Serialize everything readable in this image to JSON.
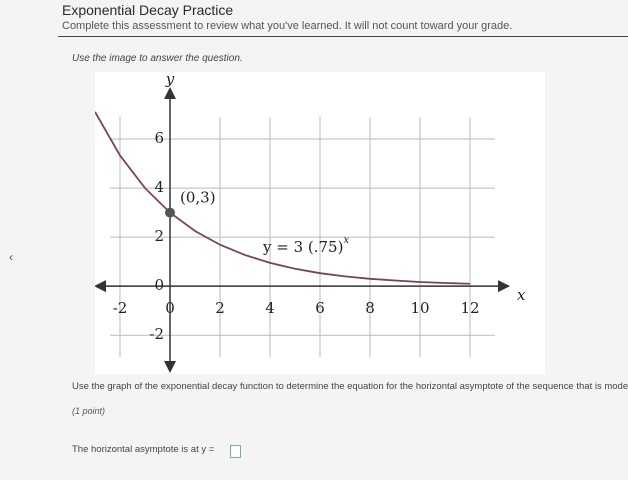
{
  "header": {
    "title": "Exponential Decay Practice",
    "subtitle": "Complete this assessment to review what you've learned. It will not count toward your grade."
  },
  "nav": {
    "previous": "‹"
  },
  "instruction": "Use the image to answer the question.",
  "chart_data": {
    "type": "line",
    "xlabel": "x",
    "ylabel": "y",
    "x": [
      -3,
      -2,
      -1,
      0,
      1,
      2,
      3,
      4,
      5,
      6,
      7,
      8,
      9,
      10,
      11,
      12
    ],
    "values": [
      7.11,
      5.33,
      4,
      3,
      2.25,
      1.69,
      1.27,
      0.95,
      0.71,
      0.53,
      0.4,
      0.3,
      0.23,
      0.17,
      0.13,
      0.1
    ],
    "color": "#7a4450",
    "xlim": [
      -3,
      13
    ],
    "ylim": [
      -3.5,
      8
    ],
    "xticks": [
      -2,
      0,
      2,
      4,
      6,
      8,
      10,
      12
    ],
    "yticks": [
      6,
      4,
      2,
      0,
      -2
    ],
    "grid": true,
    "point": {
      "x": 0,
      "y": 3,
      "label": "(0,3)"
    },
    "equation": {
      "text": "y = 3 (.75)",
      "exponent": "x"
    }
  },
  "question": "Use the graph of the exponential decay function to determine the equation for the horizontal asymptote of the sequence that is modeled b",
  "points": "(1 point)",
  "answer_prompt": "The horizontal asymptote is at y ="
}
